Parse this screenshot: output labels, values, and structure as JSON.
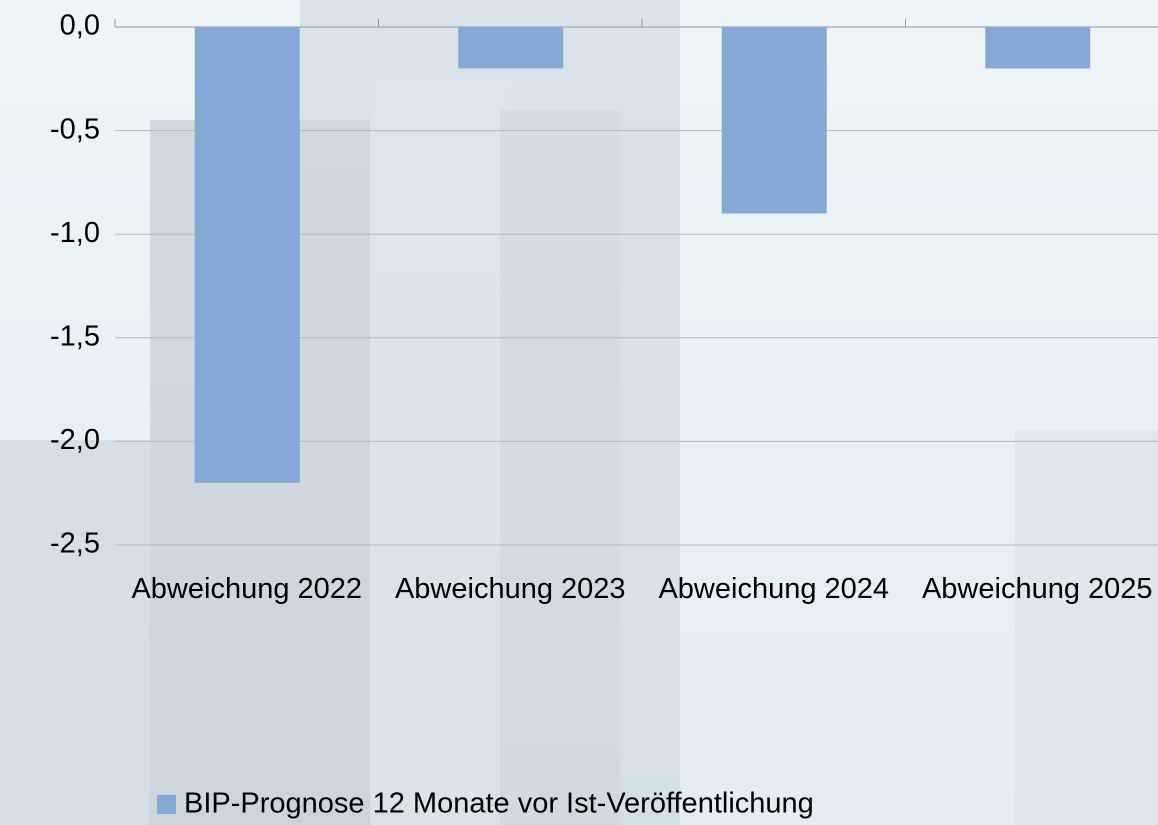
{
  "chart_data": {
    "type": "bar",
    "categories": [
      "Abweichung 2022",
      "Abweichung 2023",
      "Abweichung 2024",
      "Abweichung 2025"
    ],
    "series": [
      {
        "name": "BIP-Prognose 12 Monate vor Ist-Veröffentlichung",
        "color": "#86a8d5",
        "values": [
          -2.2,
          -0.2,
          -0.9,
          -0.2
        ]
      }
    ],
    "ylim": [
      -2.5,
      0
    ],
    "yticks": [
      {
        "value": 0,
        "label": "0,0"
      },
      {
        "value": -0.5,
        "label": "-0,5"
      },
      {
        "value": -1,
        "label": "-1,0"
      },
      {
        "value": -1.5,
        "label": "-1,5"
      },
      {
        "value": -2,
        "label": "-2,0"
      },
      {
        "value": -2.5,
        "label": "-2,5"
      }
    ],
    "grid": true
  }
}
